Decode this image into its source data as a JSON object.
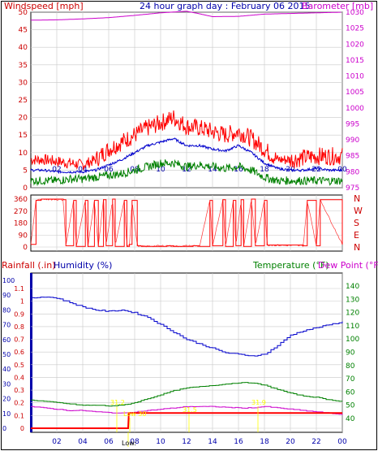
{
  "header": {
    "title": "24 hour graph day : February 06 2015",
    "wind_label": "Windspeed [mph]",
    "baro_label": "Barometer [mb]",
    "rain_label": "Rainfall (.in)",
    "hum_label": "Humidity (%)",
    "temp_label": "Temperature (°F)",
    "dew_label": "Dew Point (°F)"
  },
  "colors": {
    "wind_max": "#ff0000",
    "wind_avg": "#0000cc",
    "wind_min": "#008000",
    "baro": "#cc00cc",
    "dir": "#ff0000",
    "humidity": "#0000cc",
    "temperature": "#008000",
    "dewpoint": "#cc00cc",
    "rain": "#ff0000",
    "annot": "#ffff00",
    "grid": "#c8c8c8"
  },
  "chart_data": [
    {
      "type": "line",
      "title": "24 hour graph day : February 06 2015",
      "xlabel": "",
      "x_tick_labels": [
        "02",
        "04",
        "06",
        "08",
        "10",
        "12",
        "14",
        "16",
        "18",
        "20",
        "22",
        "00"
      ],
      "y_left_label": "Windspeed [mph]",
      "y_left_range": [
        0,
        50
      ],
      "y_left_ticks": [
        "0",
        "5",
        "10",
        "15",
        "20",
        "25",
        "30",
        "35",
        "40",
        "45",
        "50"
      ],
      "y_right_label": "Barometer [mb]",
      "y_right_range": [
        975,
        1030
      ],
      "y_right_ticks": [
        "975",
        "980",
        "985",
        "990",
        "995",
        "1000",
        "1005",
        "1010",
        "1015",
        "1020",
        "1025",
        "1030"
      ],
      "grid": true,
      "series": [
        {
          "name": "Barometer [mb]",
          "axis": "right",
          "x": [
            0,
            2,
            4,
            6,
            8,
            10,
            12,
            13,
            14,
            16,
            18,
            20,
            22,
            24
          ],
          "values": [
            1027.5,
            1027.6,
            1027.9,
            1028.3,
            1029.0,
            1029.8,
            1030.3,
            1029.5,
            1028.6,
            1028.7,
            1029.4,
            1029.6,
            1029.8,
            1030.0
          ]
        },
        {
          "name": "Gust",
          "axis": "left",
          "x": [
            0,
            1,
            2,
            3,
            4,
            5,
            6,
            7,
            8,
            9,
            10,
            11,
            12,
            13,
            14,
            15,
            16,
            17,
            18,
            19,
            20,
            21,
            22,
            23,
            24
          ],
          "values": [
            8,
            8,
            7.5,
            7,
            6.5,
            8,
            11,
            13,
            15,
            17,
            18.5,
            20,
            17.5,
            17,
            16,
            15,
            16,
            14,
            11,
            8,
            8,
            8.5,
            9,
            9,
            9
          ]
        },
        {
          "name": "Average",
          "axis": "left",
          "x": [
            0,
            1,
            2,
            3,
            4,
            5,
            6,
            7,
            8,
            9,
            10,
            11,
            12,
            13,
            14,
            15,
            16,
            17,
            18,
            19,
            20,
            21,
            22,
            23,
            24
          ],
          "values": [
            5,
            5,
            4.5,
            4.5,
            4.5,
            5,
            6.5,
            8,
            10,
            12,
            13,
            14,
            12,
            12,
            11,
            10.5,
            12,
            10,
            7,
            5.5,
            5,
            5,
            5.5,
            5,
            5
          ]
        },
        {
          "name": "Minimum",
          "axis": "left",
          "x": [
            0,
            1,
            2,
            3,
            4,
            5,
            6,
            7,
            8,
            9,
            10,
            11,
            12,
            13,
            14,
            15,
            16,
            17,
            18,
            19,
            20,
            21,
            22,
            23,
            24
          ],
          "values": [
            2,
            2,
            2,
            2.5,
            2.5,
            3,
            3.5,
            4,
            5,
            6,
            7,
            7,
            6,
            6.5,
            6,
            5.5,
            6,
            5,
            3,
            2,
            2,
            2,
            2,
            2,
            2
          ]
        }
      ]
    },
    {
      "type": "line",
      "title": "",
      "y_left_range": [
        0,
        360
      ],
      "y_left_ticks": [
        "0",
        "90",
        "180",
        "270",
        "360"
      ],
      "y_right_ticks": [
        "N",
        "W",
        "S",
        "E",
        "N"
      ],
      "series": [
        {
          "name": "Wind direction",
          "x": [
            0,
            0.4,
            0.8,
            2.5,
            2.7,
            3.3,
            3.5,
            4.2,
            4.4,
            4.9,
            5.2,
            5.6,
            5.8,
            6.3,
            6.5,
            7.2,
            7.4,
            7.6,
            7.8,
            8.2,
            8.5,
            10.5,
            11,
            12.5,
            13,
            13.8,
            14,
            14.8,
            15,
            15.6,
            15.8,
            16.2,
            16.4,
            17,
            17.3,
            18,
            18.2,
            21,
            21.3,
            22,
            22.3,
            24
          ],
          "values": [
            20,
            350,
            360,
            355,
            10,
            350,
            5,
            350,
            5,
            350,
            5,
            355,
            10,
            360,
            5,
            350,
            5,
            20,
            350,
            10,
            5,
            10,
            5,
            10,
            5,
            350,
            10,
            355,
            5,
            350,
            10,
            355,
            5,
            360,
            10,
            350,
            15,
            10,
            350,
            10,
            355,
            20
          ]
        }
      ]
    },
    {
      "type": "line",
      "title": "",
      "y_left_label": "Rainfall (.in) / Humidity (%)",
      "y_left_rain_ticks": [
        "0",
        "0.1",
        "0.2",
        "0.3",
        "0.4",
        "0.5",
        "0.6",
        "0.7",
        "0.8",
        "0.9",
        "1",
        "1.1"
      ],
      "y_left_humidity_ticks": [
        "0",
        "10",
        "20",
        "30",
        "40",
        "50",
        "60",
        "70",
        "80",
        "90",
        "100"
      ],
      "y_right_label": "Temperature (°F) / Dew Point (°F)",
      "y_right_range": [
        30,
        145
      ],
      "y_right_ticks": [
        "40",
        "50",
        "60",
        "70",
        "80",
        "90",
        "100",
        "110",
        "120",
        "130",
        "140"
      ],
      "annotations": [
        "31.2",
        "Low:",
        "Low 30",
        "31.5",
        "31.9"
      ],
      "series": [
        {
          "name": "Humidity (%)",
          "x": [
            0,
            1,
            2,
            3,
            4,
            5,
            6,
            7,
            8,
            9,
            10,
            11,
            12,
            13,
            14,
            15,
            16,
            17,
            18,
            19,
            20,
            21,
            22,
            23,
            24
          ],
          "values": [
            88,
            89,
            88,
            85,
            82,
            80,
            79,
            80,
            78,
            75,
            70,
            65,
            60,
            57,
            54,
            51,
            50,
            49,
            50,
            56,
            63,
            66,
            68,
            70,
            72
          ]
        },
        {
          "name": "Temperature (°F)",
          "x": [
            0,
            1,
            2,
            3,
            4,
            5,
            6,
            7,
            8,
            9,
            10,
            11,
            12,
            13,
            14,
            15,
            16,
            17,
            18,
            19,
            20,
            21,
            22,
            23,
            24
          ],
          "values": [
            54,
            53,
            52,
            51,
            50,
            50,
            49.5,
            50,
            52,
            55,
            58,
            61,
            63,
            64,
            65,
            66,
            67,
            67,
            65,
            62,
            59,
            57,
            56,
            54,
            53
          ]
        },
        {
          "name": "Dew Point (°F)",
          "x": [
            0,
            1,
            2,
            3,
            4,
            5,
            6,
            7,
            8,
            9,
            10,
            11,
            12,
            13,
            14,
            15,
            16,
            17,
            18,
            19,
            20,
            21,
            22,
            23,
            24
          ],
          "values": [
            49,
            48,
            47,
            46,
            46,
            45,
            44.5,
            44,
            45,
            46,
            47,
            48,
            49,
            49,
            49,
            48.5,
            48,
            48,
            49,
            48,
            47,
            46,
            45,
            44,
            43
          ]
        },
        {
          "name": "Rainfall (.in)",
          "x": [
            0,
            7.5,
            7.55,
            24
          ],
          "values": [
            0,
            0,
            0.12,
            0.12
          ]
        }
      ]
    }
  ]
}
